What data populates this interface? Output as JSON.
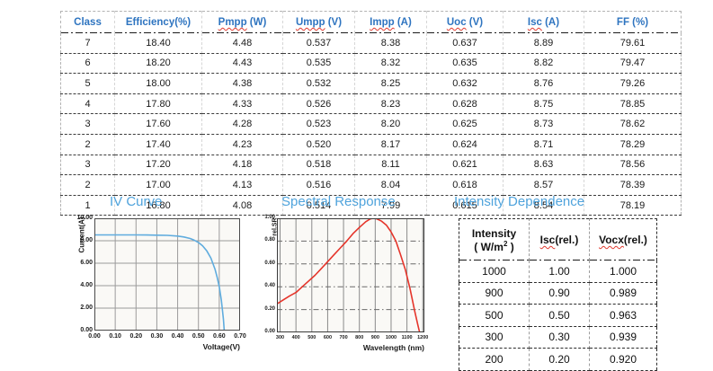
{
  "electrical_table": {
    "headers": [
      {
        "word": "Class",
        "rest": "",
        "misspell": false
      },
      {
        "word": "Efficiency(%)",
        "rest": "",
        "misspell": false
      },
      {
        "word": "Pmpp",
        "rest": " (W)",
        "misspell": true
      },
      {
        "word": "Umpp",
        "rest": " (V)",
        "misspell": true
      },
      {
        "word": "Impp",
        "rest": " (A)",
        "misspell": true
      },
      {
        "word": "Uoc",
        "rest": " (V)",
        "misspell": true
      },
      {
        "word": "Isc",
        "rest": " (A)",
        "misspell": true
      },
      {
        "word": "FF",
        "rest": " (%)",
        "misspell": false
      }
    ],
    "rows": [
      [
        "7",
        "18.40",
        "4.48",
        "0.537",
        "8.38",
        "0.637",
        "8.89",
        "79.61"
      ],
      [
        "6",
        "18.20",
        "4.43",
        "0.535",
        "8.32",
        "0.635",
        "8.82",
        "79.47"
      ],
      [
        "5",
        "18.00",
        "4.38",
        "0.532",
        "8.25",
        "0.632",
        "8.76",
        "79.26"
      ],
      [
        "4",
        "17.80",
        "4.33",
        "0.526",
        "8.23",
        "0.628",
        "8.75",
        "78.85"
      ],
      [
        "3",
        "17.60",
        "4.28",
        "0.523",
        "8.20",
        "0.625",
        "8.73",
        "78.62"
      ],
      [
        "2",
        "17.40",
        "4.23",
        "0.520",
        "8.17",
        "0.624",
        "8.71",
        "78.29"
      ],
      [
        "3",
        "17.20",
        "4.18",
        "0.518",
        "8.11",
        "0.621",
        "8.63",
        "78.56"
      ],
      [
        "2",
        "17.00",
        "4.13",
        "0.516",
        "8.04",
        "0.618",
        "8.57",
        "78.39"
      ],
      [
        "1",
        "16.80",
        "4.08",
        "0.514",
        "7.99",
        "0.615",
        "8.54",
        "78.19"
      ]
    ]
  },
  "chart_data": [
    {
      "id": "iv",
      "type": "line",
      "title": "IV Curve",
      "xlabel": "Voltage(V)",
      "ylabel": "Current(A)",
      "xlim": [
        0,
        0.7
      ],
      "ylim": [
        0,
        10
      ],
      "xticks": [
        "0.00",
        "0.10",
        "0.20",
        "0.30",
        "0.40",
        "0.50",
        "0.60",
        "0.70"
      ],
      "yticks": [
        "0.00",
        "2.00",
        "4.00",
        "6.00",
        "8.00",
        "10.00"
      ],
      "grid": true,
      "legend": "none",
      "line_color": "#5facde",
      "points": [
        [
          0,
          8.52
        ],
        [
          0.05,
          8.52
        ],
        [
          0.1,
          8.52
        ],
        [
          0.15,
          8.52
        ],
        [
          0.2,
          8.52
        ],
        [
          0.25,
          8.51
        ],
        [
          0.3,
          8.5
        ],
        [
          0.35,
          8.48
        ],
        [
          0.4,
          8.42
        ],
        [
          0.43,
          8.34
        ],
        [
          0.46,
          8.2
        ],
        [
          0.48,
          8.05
        ],
        [
          0.5,
          7.85
        ],
        [
          0.52,
          7.55
        ],
        [
          0.54,
          7.1
        ],
        [
          0.56,
          6.45
        ],
        [
          0.58,
          5.45
        ],
        [
          0.59,
          4.75
        ],
        [
          0.6,
          3.9
        ],
        [
          0.61,
          2.7
        ],
        [
          0.615,
          1.9
        ],
        [
          0.62,
          1.0
        ],
        [
          0.624,
          0
        ]
      ]
    },
    {
      "id": "sr",
      "type": "line",
      "title": "Spectral Response",
      "xlabel": "Wavelength (nm)",
      "ylabel": "rel.SR",
      "xlim": [
        280,
        1210
      ],
      "ylim": [
        0,
        1
      ],
      "xticks": [
        "300",
        "400",
        "500",
        "600",
        "700",
        "800",
        "900",
        "1000",
        "1100",
        "1200"
      ],
      "yticks": [
        "0.00",
        "0.20",
        "0.40",
        "0.60",
        "0.80",
        "1.00"
      ],
      "grid": true,
      "legend": "none",
      "line_color": "#e5352b",
      "points": [
        [
          280,
          0.25
        ],
        [
          320,
          0.285
        ],
        [
          360,
          0.32
        ],
        [
          400,
          0.35
        ],
        [
          440,
          0.4
        ],
        [
          480,
          0.45
        ],
        [
          520,
          0.5
        ],
        [
          560,
          0.56
        ],
        [
          600,
          0.62
        ],
        [
          640,
          0.68
        ],
        [
          680,
          0.74
        ],
        [
          720,
          0.8
        ],
        [
          760,
          0.865
        ],
        [
          800,
          0.92
        ],
        [
          840,
          0.97
        ],
        [
          870,
          0.995
        ],
        [
          890,
          1.0
        ],
        [
          910,
          0.995
        ],
        [
          940,
          0.975
        ],
        [
          970,
          0.94
        ],
        [
          1000,
          0.88
        ],
        [
          1030,
          0.8
        ],
        [
          1060,
          0.68
        ],
        [
          1090,
          0.55
        ],
        [
          1120,
          0.38
        ],
        [
          1150,
          0.18
        ],
        [
          1170,
          0.06
        ],
        [
          1180,
          0
        ]
      ]
    }
  ],
  "intensity_table": {
    "title": "Intensity Dependence",
    "header_intensity_line1": "Intensity",
    "header_intensity_line2_pre": "( W/m",
    "header_intensity_sup": "2",
    "header_intensity_line2_post": " )",
    "columns": [
      {
        "word": "Isc",
        "rest": "(rel.)",
        "misspell": true
      },
      {
        "word": "Vocx",
        "rest": "(rel.)",
        "misspell": true
      }
    ],
    "rows": [
      [
        "1000",
        "1.00",
        "1.000"
      ],
      [
        "900",
        "0.90",
        "0.989"
      ],
      [
        "500",
        "0.50",
        "0.963"
      ],
      [
        "300",
        "0.30",
        "0.939"
      ],
      [
        "200",
        "0.20",
        "0.920"
      ]
    ]
  },
  "colors": {
    "header_blue": "#2e74c0",
    "section_title_blue": "#4fa3dc",
    "iv_line": "#5facde",
    "sr_line": "#e5352b",
    "squiggle_red": "#e03a2f"
  }
}
